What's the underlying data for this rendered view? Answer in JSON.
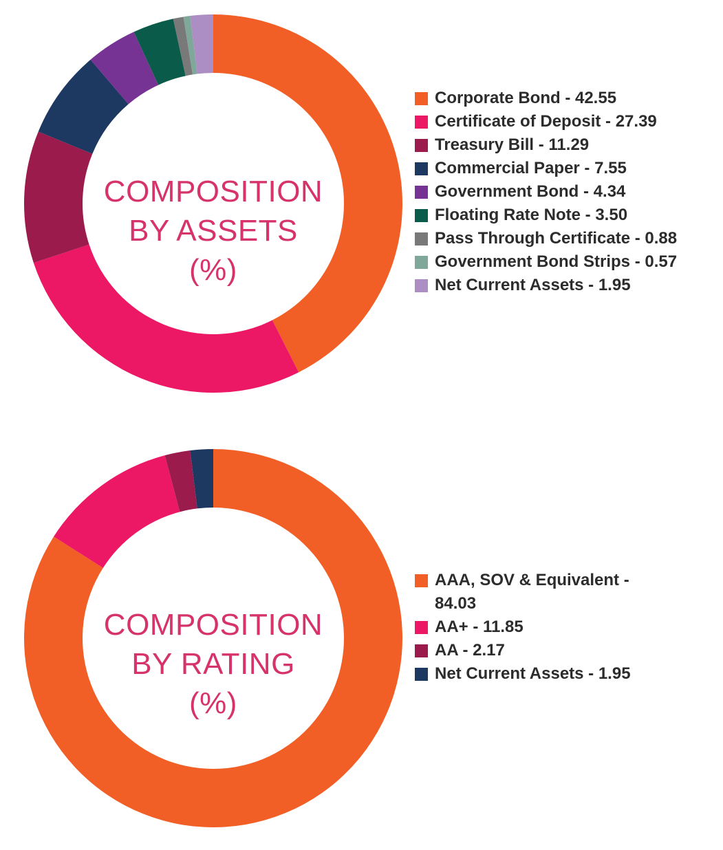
{
  "charts": [
    {
      "id": "assets",
      "center_lines": [
        "COMPOSITION",
        "BY ASSETS",
        "(%)"
      ],
      "legend": [
        "Corporate Bond - 42.55",
        "Certificate of Deposit - 27.39",
        "Treasury Bill - 11.29",
        "Commercial Paper - 7.55",
        "Government Bond - 4.34",
        "Floating Rate Note - 3.50",
        "Pass Through Certificate - 0.88",
        "Government Bond Strips - 0.57",
        "Net Current Assets - 1.95"
      ]
    },
    {
      "id": "rating",
      "center_lines": [
        "COMPOSITION",
        "BY RATING",
        "(%)"
      ],
      "legend": [
        "AAA, SOV & Equivalent - 84.03",
        "AA+ - 11.85",
        "AA - 2.17",
        "Net Current Assets - 1.95"
      ]
    }
  ],
  "chart_data": [
    {
      "type": "pie",
      "title": "COMPOSITION BY ASSETS (%)",
      "categories": [
        "Corporate Bond",
        "Certificate of Deposit",
        "Treasury Bill",
        "Commercial Paper",
        "Government Bond",
        "Floating Rate Note",
        "Pass Through Certificate",
        "Government Bond Strips",
        "Net Current Assets"
      ],
      "values": [
        42.55,
        27.39,
        11.29,
        7.55,
        4.34,
        3.5,
        0.88,
        0.57,
        1.95
      ],
      "colors": [
        "#f15f27",
        "#ec1865",
        "#9b1b4d",
        "#1d3861",
        "#763394",
        "#0b5b4a",
        "#797979",
        "#7fa89b",
        "#ad8ec4"
      ],
      "donut": true,
      "start": "top",
      "direction": "clockwise",
      "legend_position": "right"
    },
    {
      "type": "pie",
      "title": "COMPOSITION BY RATING (%)",
      "categories": [
        "AAA, SOV & Equivalent",
        "AA+",
        "AA",
        "Net Current Assets"
      ],
      "values": [
        84.03,
        11.85,
        2.17,
        1.95
      ],
      "colors": [
        "#f15f27",
        "#ec1865",
        "#9b1b4d",
        "#1d3861"
      ],
      "donut": true,
      "start": "top",
      "direction": "clockwise",
      "legend_position": "right"
    }
  ]
}
